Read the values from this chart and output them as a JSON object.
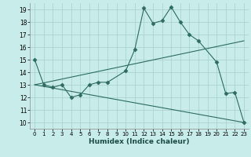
{
  "xlabel": "Humidex (Indice chaleur)",
  "background_color": "#c8ecea",
  "grid_color": "#a8ceca",
  "line_color": "#2d6b60",
  "xlim": [
    -0.5,
    23.5
  ],
  "ylim": [
    9.5,
    19.5
  ],
  "xticks": [
    0,
    1,
    2,
    3,
    4,
    5,
    6,
    7,
    8,
    9,
    10,
    11,
    12,
    13,
    14,
    15,
    16,
    17,
    18,
    19,
    20,
    21,
    22,
    23
  ],
  "yticks": [
    10,
    11,
    12,
    13,
    14,
    15,
    16,
    17,
    18,
    19
  ],
  "series": [
    {
      "x": [
        0,
        1,
        2,
        3,
        4,
        5,
        6,
        7,
        8,
        10,
        11,
        12,
        13,
        14,
        15,
        16,
        17,
        18,
        20,
        21,
        22,
        23
      ],
      "y": [
        15,
        13,
        12.8,
        13,
        12,
        12.2,
        13,
        13.2,
        13.2,
        14.1,
        15.8,
        19.1,
        17.9,
        18.1,
        19.2,
        18.0,
        17.0,
        16.5,
        14.8,
        12.3,
        12.4,
        10.0
      ],
      "marker": "D",
      "markersize": 2.5
    },
    {
      "x": [
        0,
        23
      ],
      "y": [
        13,
        16.5
      ],
      "marker": null,
      "markersize": 0
    },
    {
      "x": [
        0,
        23
      ],
      "y": [
        13,
        10
      ],
      "marker": null,
      "markersize": 0
    }
  ]
}
